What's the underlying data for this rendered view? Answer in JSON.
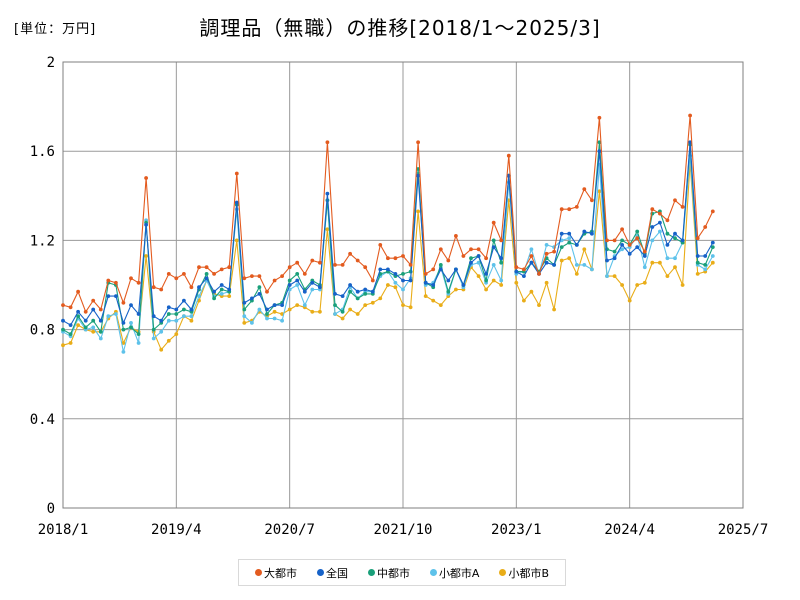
{
  "unit_label": "[単位：万円]",
  "title": "調理品（無職）の推移[2018/1〜2025/3]",
  "chart_data": {
    "type": "line",
    "ylim": [
      0,
      2
    ],
    "yticks": [
      "0",
      "0.4",
      "0.8",
      "1.2",
      "1.6",
      "2"
    ],
    "xticks": [
      "2018/1",
      "2019/4",
      "2020/7",
      "2021/10",
      "2023/1",
      "2024/4",
      "2025/7"
    ],
    "xlim_months": [
      0,
      90
    ],
    "grid": true,
    "legend_position": "bottom",
    "x_start": "2018/1",
    "series": [
      {
        "name": "大都市",
        "color": "#e35b1f",
        "values": [
          0.91,
          0.9,
          0.97,
          0.88,
          0.93,
          0.89,
          1.02,
          1.01,
          0.92,
          1.03,
          1.01,
          1.48,
          0.99,
          0.98,
          1.05,
          1.03,
          1.05,
          0.99,
          1.08,
          1.08,
          1.05,
          1.07,
          1.08,
          1.5,
          1.03,
          1.04,
          1.04,
          0.97,
          1.02,
          1.04,
          1.08,
          1.1,
          1.05,
          1.11,
          1.1,
          1.64,
          1.09,
          1.09,
          1.14,
          1.11,
          1.08,
          1.02,
          1.18,
          1.12,
          1.12,
          1.13,
          1.09,
          1.64,
          1.05,
          1.07,
          1.16,
          1.11,
          1.22,
          1.13,
          1.16,
          1.16,
          1.12,
          1.28,
          1.2,
          1.58,
          1.08,
          1.07,
          1.13,
          1.05,
          1.14,
          1.15,
          1.34,
          1.34,
          1.35,
          1.43,
          1.38,
          1.75,
          1.2,
          1.2,
          1.25,
          1.18,
          1.21,
          1.15,
          1.34,
          1.32,
          1.29,
          1.38,
          1.35,
          1.76,
          1.21,
          1.26,
          1.33
        ]
      },
      {
        "name": "全国",
        "color": "#1662c8",
        "values": [
          0.84,
          0.82,
          0.88,
          0.84,
          0.89,
          0.84,
          0.95,
          0.95,
          0.83,
          0.91,
          0.87,
          1.27,
          0.86,
          0.84,
          0.9,
          0.89,
          0.93,
          0.89,
          0.99,
          1.03,
          0.97,
          1.0,
          0.98,
          1.37,
          0.92,
          0.94,
          0.96,
          0.89,
          0.91,
          0.91,
          1.0,
          1.02,
          0.97,
          1.01,
          0.99,
          1.41,
          0.96,
          0.95,
          1.0,
          0.97,
          0.98,
          0.97,
          1.07,
          1.07,
          1.05,
          1.02,
          1.02,
          1.49,
          1.01,
          1.0,
          1.07,
          1.02,
          1.07,
          1.0,
          1.1,
          1.13,
          1.05,
          1.17,
          1.12,
          1.49,
          1.06,
          1.04,
          1.1,
          1.05,
          1.1,
          1.09,
          1.23,
          1.23,
          1.18,
          1.24,
          1.23,
          1.6,
          1.11,
          1.12,
          1.18,
          1.14,
          1.17,
          1.13,
          1.26,
          1.28,
          1.18,
          1.23,
          1.2,
          1.64,
          1.13,
          1.13,
          1.19
        ]
      },
      {
        "name": "中都市",
        "color": "#1aa07a",
        "values": [
          0.8,
          0.78,
          0.86,
          0.81,
          0.84,
          0.79,
          1.01,
          1.0,
          0.8,
          0.81,
          0.78,
          1.28,
          0.8,
          0.83,
          0.87,
          0.87,
          0.89,
          0.88,
          0.98,
          1.05,
          0.94,
          0.98,
          0.97,
          1.36,
          0.89,
          0.93,
          0.99,
          0.87,
          0.91,
          0.92,
          1.02,
          1.05,
          0.98,
          1.02,
          1.0,
          1.38,
          0.91,
          0.88,
          0.97,
          0.94,
          0.96,
          0.96,
          1.05,
          1.06,
          1.04,
          1.05,
          1.06,
          1.52,
          1.01,
          0.99,
          1.09,
          0.97,
          1.07,
          1.0,
          1.12,
          1.13,
          1.02,
          1.2,
          1.1,
          1.49,
          1.06,
          1.06,
          1.1,
          1.06,
          1.12,
          1.09,
          1.17,
          1.19,
          1.18,
          1.23,
          1.24,
          1.64,
          1.16,
          1.15,
          1.2,
          1.18,
          1.24,
          1.14,
          1.32,
          1.33,
          1.23,
          1.21,
          1.19,
          1.63,
          1.1,
          1.09,
          1.17
        ]
      },
      {
        "name": "小都市A",
        "color": "#5ec2ea",
        "values": [
          0.79,
          0.77,
          0.85,
          0.8,
          0.81,
          0.76,
          0.86,
          0.87,
          0.7,
          0.83,
          0.74,
          1.29,
          0.76,
          0.79,
          0.84,
          0.84,
          0.86,
          0.86,
          0.95,
          1.02,
          0.95,
          0.96,
          0.97,
          1.34,
          0.86,
          0.83,
          0.89,
          0.85,
          0.85,
          0.84,
          0.98,
          1.0,
          0.91,
          0.98,
          0.98,
          1.38,
          0.87,
          0.89,
          0.99,
          0.94,
          0.97,
          0.97,
          1.04,
          1.06,
          1.01,
          0.98,
          1.03,
          1.5,
          1.0,
          1.01,
          1.08,
          0.96,
          1.07,
          0.99,
          1.09,
          1.1,
          1.01,
          1.09,
          1.02,
          1.46,
          1.05,
          1.06,
          1.16,
          1.05,
          1.18,
          1.17,
          1.2,
          1.21,
          1.09,
          1.09,
          1.07,
          1.54,
          1.04,
          1.13,
          1.16,
          1.17,
          1.22,
          1.08,
          1.2,
          1.24,
          1.12,
          1.12,
          1.19,
          1.58,
          1.09,
          1.07,
          1.13
        ]
      },
      {
        "name": "小都市B",
        "color": "#e9ad18",
        "values": [
          0.73,
          0.74,
          0.82,
          0.8,
          0.79,
          0.79,
          0.85,
          0.88,
          0.74,
          0.81,
          0.79,
          1.13,
          0.79,
          0.71,
          0.75,
          0.78,
          0.86,
          0.84,
          0.93,
          1.02,
          0.96,
          0.95,
          0.95,
          1.2,
          0.83,
          0.84,
          0.88,
          0.86,
          0.88,
          0.87,
          0.89,
          0.91,
          0.9,
          0.88,
          0.88,
          1.25,
          0.87,
          0.85,
          0.89,
          0.87,
          0.91,
          0.92,
          0.94,
          1.0,
          0.99,
          0.91,
          0.9,
          1.33,
          0.95,
          0.93,
          0.91,
          0.95,
          0.98,
          0.98,
          1.08,
          1.04,
          0.98,
          1.02,
          1.0,
          1.38,
          1.01,
          0.93,
          0.97,
          0.91,
          1.01,
          0.89,
          1.11,
          1.12,
          1.05,
          1.16,
          1.07,
          1.42,
          1.04,
          1.04,
          1.0,
          0.93,
          1.0,
          1.01,
          1.1,
          1.1,
          1.04,
          1.08,
          1.0,
          1.55,
          1.05,
          1.06,
          1.1
        ]
      }
    ]
  }
}
